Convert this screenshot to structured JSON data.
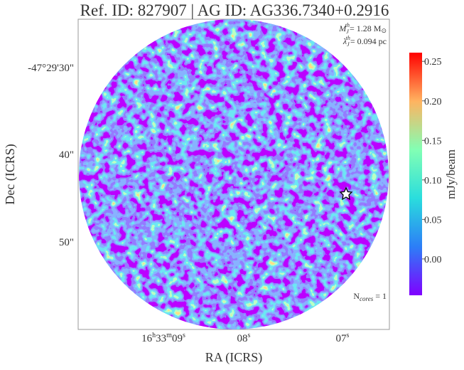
{
  "chart_data": {
    "type": "image",
    "title": "Ref. ID: 827907 | AG ID: AG336.7340+0.2916",
    "x_label": "RA (ICRS)",
    "y_label": "Dec (ICRS)",
    "x_tick_labels": [
      [
        "16",
        "h",
        "33",
        "m",
        "09",
        "s"
      ],
      [
        "08",
        "s"
      ],
      [
        "07",
        "s"
      ]
    ],
    "y_tick_labels": [
      "-47°29'30\"",
      "40\"",
      "50\""
    ],
    "annotations": {
      "mass": [
        "M",
        "J",
        "th",
        "= 1.28 M",
        "⊙"
      ],
      "length": [
        "λ",
        "J",
        "th",
        "= 0.094 pc"
      ],
      "cores": [
        "N",
        "cores",
        " = 1"
      ]
    },
    "colorbar": {
      "label": "mJy/beam",
      "ylim": [
        -0.046,
        0.261
      ],
      "yticks": [
        {
          "value": 0,
          "label": "0.00"
        },
        0.05,
        {
          "value": 0.1,
          "label": "0.10"
        },
        0.15,
        {
          "value": 0.2,
          "label": "0.20"
        },
        0.25
      ]
    }
  }
}
